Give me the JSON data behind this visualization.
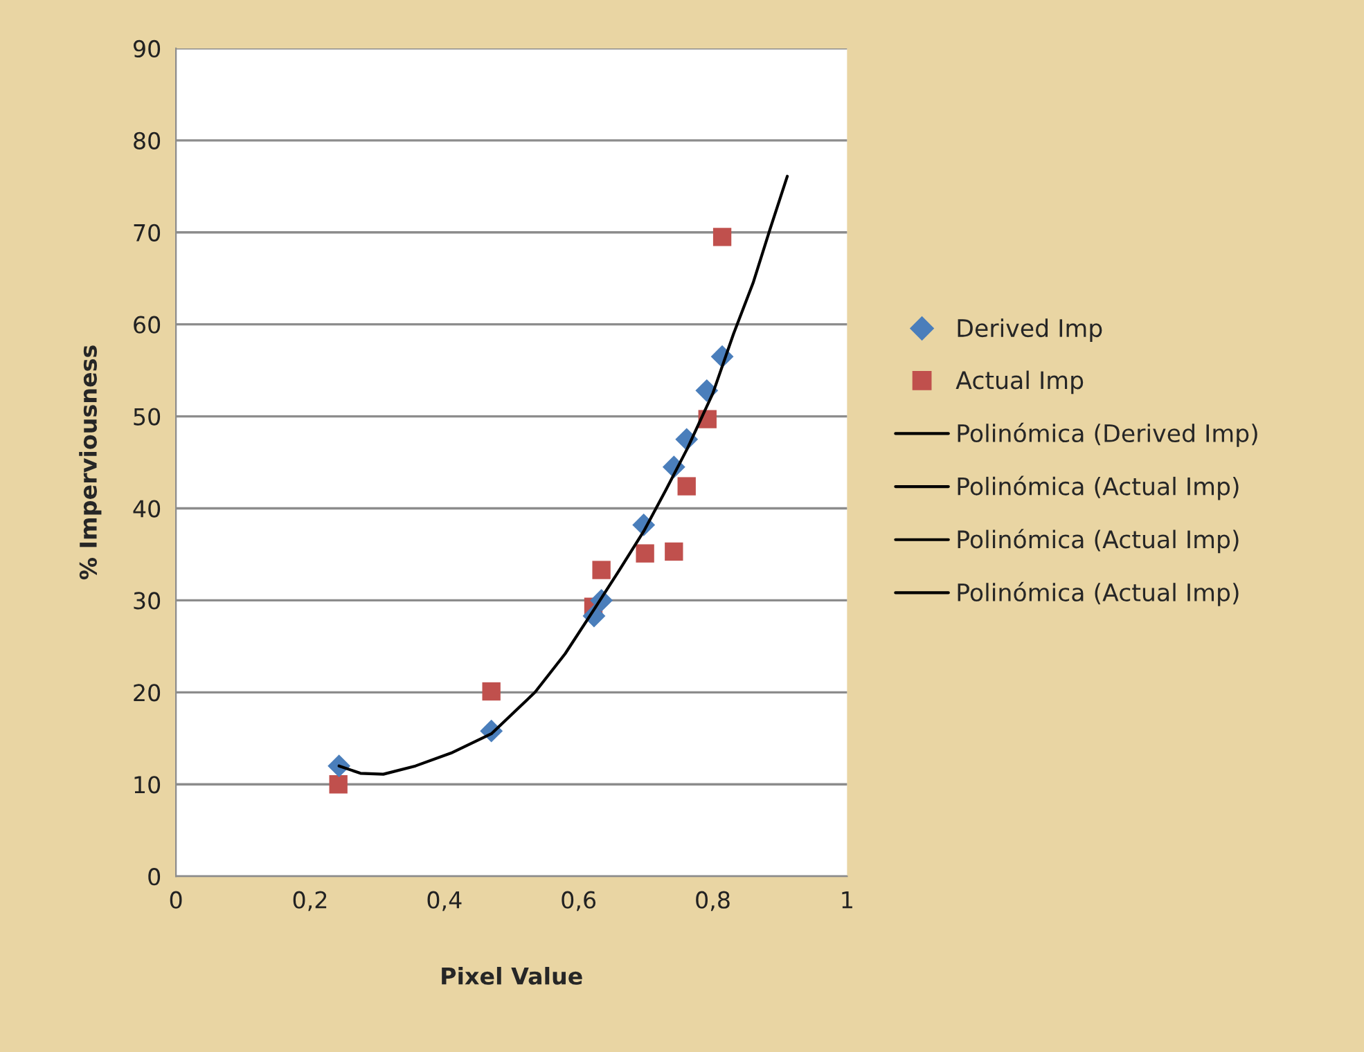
{
  "chart_data": {
    "type": "scatter",
    "xlabel": "Pixel Value",
    "ylabel": "% Imperviousness",
    "xlim": [
      0,
      1
    ],
    "ylim": [
      0,
      90
    ],
    "xticks": [
      0,
      {
        "value": 0.2,
        "label": "0,2"
      },
      {
        "value": 0.4,
        "label": "0,4"
      },
      {
        "value": 0.6,
        "label": "0,6"
      },
      {
        "value": 0.8,
        "label": "0,8"
      },
      1
    ],
    "yticks": [
      0,
      10,
      20,
      30,
      40,
      50,
      60,
      70,
      80,
      90
    ],
    "grid": "y",
    "legend": "right",
    "series": [
      {
        "name": "Derived Imp",
        "marker": "diamond",
        "color": "#4a7ebb",
        "x": [
          0.243,
          0.47,
          0.623,
          0.634,
          0.697,
          0.742,
          0.761,
          0.791,
          0.814
        ],
        "values": [
          12,
          15.8,
          28.3,
          30,
          38.2,
          44.5,
          47.5,
          52.8,
          56.5
        ]
      },
      {
        "name": "Actual Imp",
        "marker": "square",
        "color": "#c0504d",
        "x": [
          0.242,
          0.47,
          0.622,
          0.634,
          0.699,
          0.742,
          0.761,
          0.792,
          0.814
        ],
        "values": [
          10,
          20.1,
          29.3,
          33.3,
          35.1,
          35.3,
          42.4,
          49.7,
          69.5
        ]
      },
      {
        "name": "Polinómica (Derived Imp)",
        "type": "line",
        "marker": "none",
        "line_style": "solid",
        "color": "#000000",
        "x": [
          0.243,
          0.275,
          0.309,
          0.357,
          0.41,
          0.47,
          0.535,
          0.58,
          0.623,
          0.66,
          0.697,
          0.73,
          0.762,
          0.8,
          0.831,
          0.86,
          0.885,
          0.911
        ],
        "values": [
          12,
          11.2,
          11.1,
          12,
          13.4,
          15.5,
          20,
          24.2,
          29,
          33.2,
          37.5,
          42,
          46.5,
          52.5,
          59,
          64.5,
          70.3,
          76.1
        ]
      },
      {
        "name": "Polinómica (Actual Imp)",
        "type": "line",
        "marker": "none",
        "line_style": "solid",
        "color": "#000000"
      },
      {
        "name": "Polinómica (Actual Imp)",
        "type": "line",
        "marker": "none",
        "line_style": "solid",
        "color": "#000000"
      },
      {
        "name": "Polinómica (Actual Imp)",
        "type": "line",
        "marker": "none",
        "line_style": "solid",
        "color": "#000000"
      }
    ]
  }
}
